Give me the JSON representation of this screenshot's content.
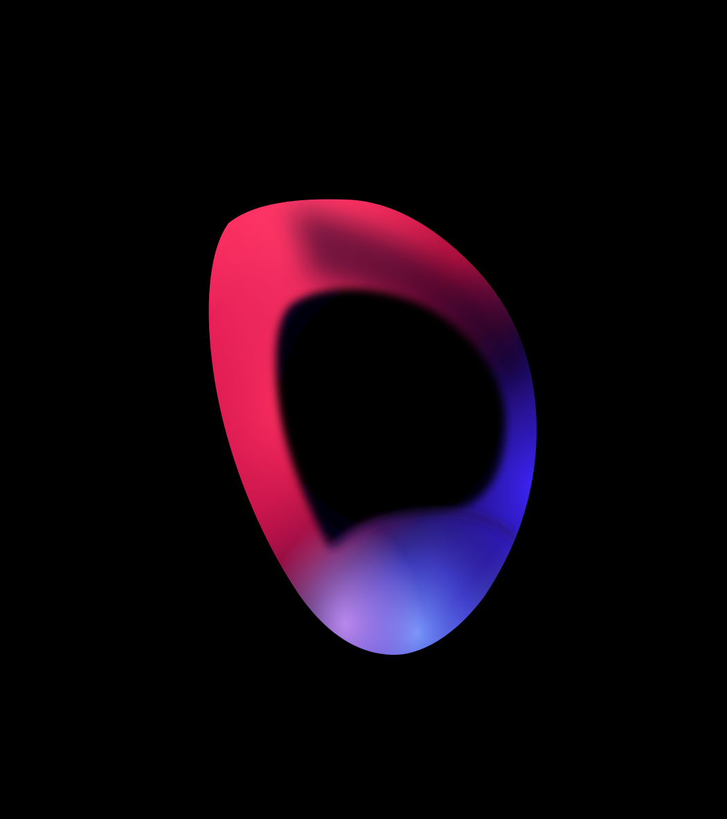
{
  "scene": {
    "background_color": "#000000",
    "subject": "abstract-gradient-ring",
    "colors": {
      "magenta_red": "#ff1e5a",
      "deep_crimson": "#8a0f3c",
      "dark_navy": "#05021a",
      "violet_blue": "#3a1cff",
      "periwinkle": "#6f8cff",
      "lilac": "#c58cff"
    }
  }
}
